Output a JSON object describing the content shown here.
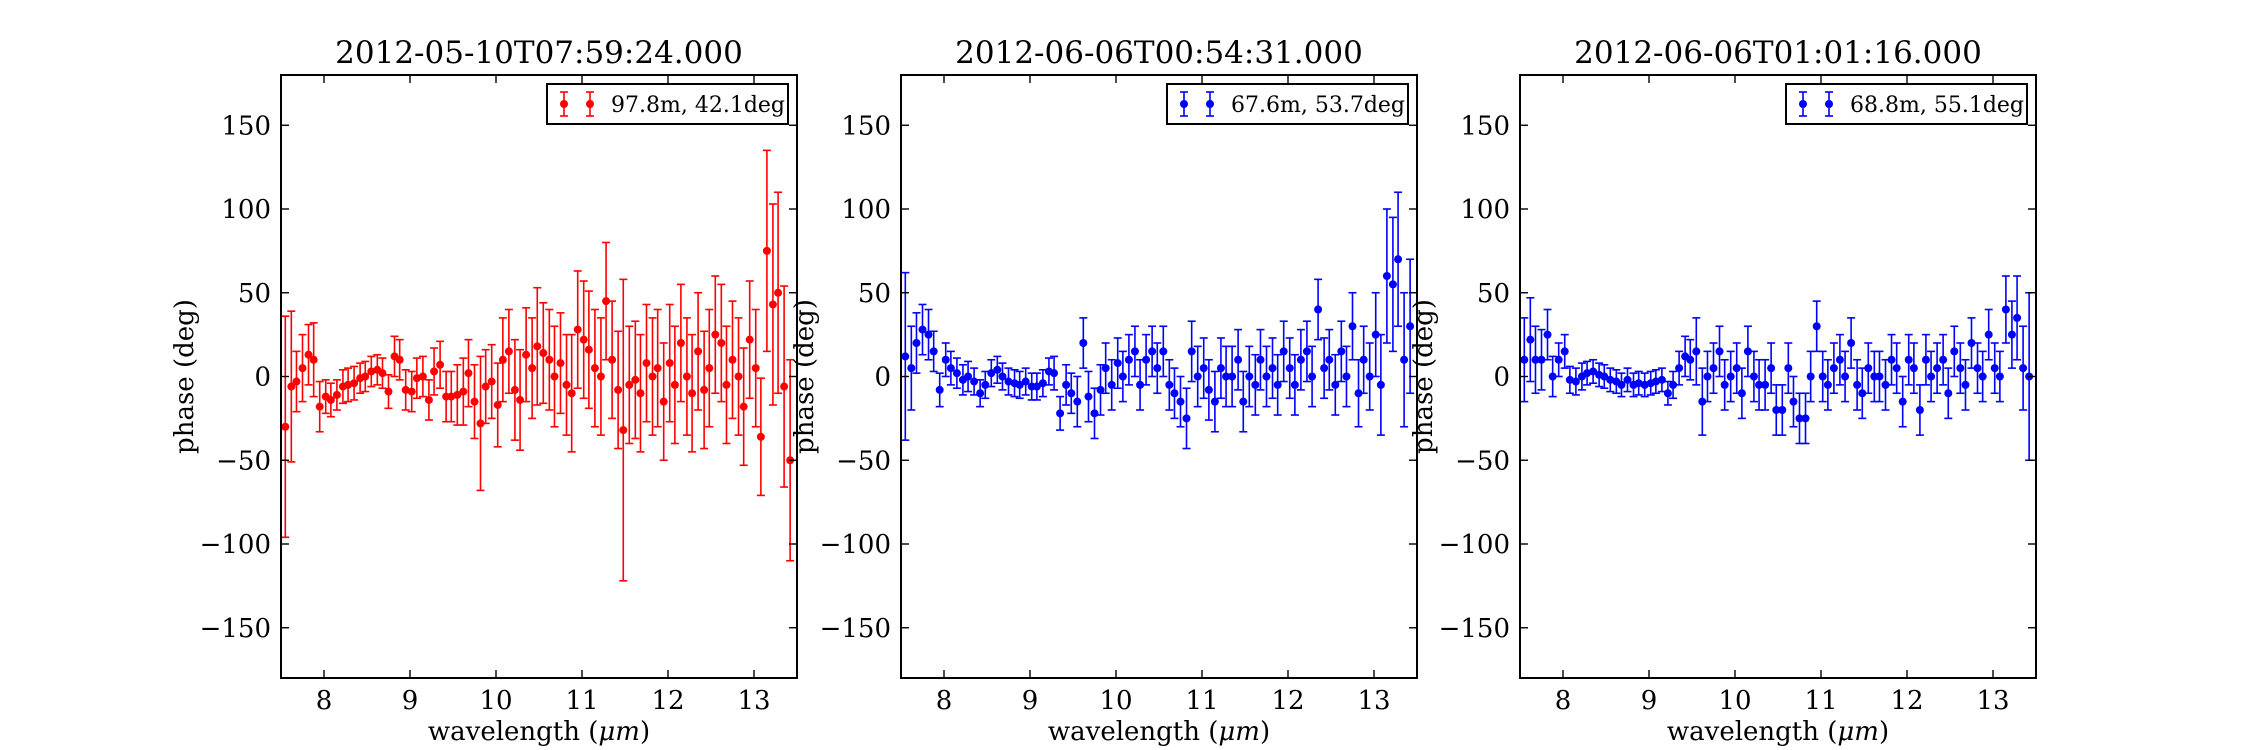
{
  "chart_data": [
    {
      "type": "scatter",
      "title": "2012-05-10T07:59:24.000",
      "xlabel": "wavelength (",
      "xlabel_unit": "μm",
      "xlabel_close": ")",
      "ylabel": "phase (deg)",
      "xlim": [
        7.5,
        13.5
      ],
      "ylim": [
        -180,
        180
      ],
      "xticks": [
        8,
        9,
        10,
        11,
        12,
        13
      ],
      "yticks": [
        -150,
        -100,
        -50,
        0,
        50,
        100,
        150
      ],
      "ytick_labels": [
        "−150",
        "−100",
        "−50",
        "0",
        "50",
        "100",
        "150"
      ],
      "xtick_labels": [
        "8",
        "9",
        "10",
        "11",
        "12",
        "13"
      ],
      "legend": {
        "label": "97.8m, 42.1deg",
        "position": "upper-right"
      },
      "color": "#ff0000",
      "series": [
        {
          "name": "97.8m, 42.1deg",
          "x": [
            7.55,
            7.62,
            7.68,
            7.75,
            7.82,
            7.88,
            7.95,
            8.02,
            8.08,
            8.15,
            8.22,
            8.28,
            8.35,
            8.42,
            8.48,
            8.55,
            8.62,
            8.68,
            8.75,
            8.82,
            8.88,
            8.95,
            9.02,
            9.08,
            9.15,
            9.22,
            9.28,
            9.35,
            9.42,
            9.48,
            9.55,
            9.62,
            9.68,
            9.75,
            9.82,
            9.88,
            9.95,
            10.02,
            10.08,
            10.15,
            10.22,
            10.28,
            10.35,
            10.42,
            10.48,
            10.55,
            10.62,
            10.68,
            10.75,
            10.82,
            10.88,
            10.95,
            11.02,
            11.08,
            11.15,
            11.22,
            11.28,
            11.35,
            11.42,
            11.48,
            11.55,
            11.62,
            11.68,
            11.75,
            11.82,
            11.88,
            11.95,
            12.02,
            12.08,
            12.15,
            12.22,
            12.28,
            12.35,
            12.42,
            12.48,
            12.55,
            12.62,
            12.68,
            12.75,
            12.82,
            12.88,
            12.95,
            13.02,
            13.08,
            13.15,
            13.22,
            13.28,
            13.35,
            13.42
          ],
          "y": [
            -30,
            -6,
            -3,
            5,
            13,
            10,
            -18,
            -12,
            -14,
            -11,
            -6,
            -5,
            -4,
            -1,
            0,
            3,
            4,
            2,
            -9,
            12,
            10,
            -8,
            -9,
            -1,
            0,
            -14,
            3,
            7,
            -12,
            -12,
            -11,
            -9,
            2,
            -15,
            -28,
            -6,
            -3,
            -17,
            10,
            15,
            -8,
            -14,
            13,
            5,
            18,
            14,
            10,
            0,
            8,
            -5,
            -10,
            28,
            22,
            16,
            5,
            0,
            45,
            10,
            -8,
            -32,
            -5,
            -2,
            -10,
            8,
            0,
            5,
            -15,
            8,
            -5,
            20,
            0,
            -10,
            15,
            -8,
            5,
            25,
            20,
            -5,
            10,
            0,
            -18,
            22,
            5,
            -36,
            75,
            43,
            50,
            -6,
            -50
          ],
          "yerr": [
            66,
            45,
            18,
            20,
            18,
            22,
            15,
            10,
            10,
            9,
            10,
            10,
            10,
            9,
            9,
            9,
            9,
            9,
            10,
            12,
            12,
            12,
            12,
            12,
            12,
            12,
            14,
            14,
            15,
            15,
            18,
            20,
            20,
            22,
            40,
            22,
            22,
            25,
            25,
            25,
            30,
            30,
            28,
            30,
            35,
            30,
            30,
            30,
            30,
            30,
            35,
            35,
            35,
            35,
            35,
            35,
            35,
            35,
            35,
            90,
            35,
            35,
            35,
            35,
            35,
            35,
            35,
            35,
            35,
            35,
            35,
            35,
            35,
            35,
            35,
            35,
            35,
            35,
            35,
            35,
            35,
            35,
            35,
            35,
            60,
            60,
            60,
            60,
            60
          ]
        }
      ]
    },
    {
      "type": "scatter",
      "title": "2012-06-06T00:54:31.000",
      "xlabel": "wavelength (",
      "xlabel_unit": "μm",
      "xlabel_close": ")",
      "ylabel": "phase (deg)",
      "xlim": [
        7.5,
        13.5
      ],
      "ylim": [
        -180,
        180
      ],
      "xticks": [
        8,
        9,
        10,
        11,
        12,
        13
      ],
      "yticks": [
        -150,
        -100,
        -50,
        0,
        50,
        100,
        150
      ],
      "ytick_labels": [
        "−150",
        "−100",
        "−50",
        "0",
        "50",
        "100",
        "150"
      ],
      "xtick_labels": [
        "8",
        "9",
        "10",
        "11",
        "12",
        "13"
      ],
      "legend": {
        "label": "67.6m, 53.7deg",
        "position": "upper-right"
      },
      "color": "#0000ff",
      "series": [
        {
          "name": "67.6m, 53.7deg",
          "x": [
            7.55,
            7.62,
            7.68,
            7.75,
            7.82,
            7.88,
            7.95,
            8.02,
            8.08,
            8.15,
            8.22,
            8.28,
            8.35,
            8.42,
            8.48,
            8.55,
            8.62,
            8.68,
            8.75,
            8.82,
            8.88,
            8.95,
            9.02,
            9.08,
            9.15,
            9.22,
            9.28,
            9.35,
            9.42,
            9.48,
            9.55,
            9.62,
            9.68,
            9.75,
            9.82,
            9.88,
            9.95,
            10.02,
            10.08,
            10.15,
            10.22,
            10.28,
            10.35,
            10.42,
            10.48,
            10.55,
            10.62,
            10.68,
            10.75,
            10.82,
            10.88,
            10.95,
            11.02,
            11.08,
            11.15,
            11.22,
            11.28,
            11.35,
            11.42,
            11.48,
            11.55,
            11.62,
            11.68,
            11.75,
            11.82,
            11.88,
            11.95,
            12.02,
            12.08,
            12.15,
            12.22,
            12.28,
            12.35,
            12.42,
            12.48,
            12.55,
            12.62,
            12.68,
            12.75,
            12.82,
            12.88,
            12.95,
            13.02,
            13.08,
            13.15,
            13.22,
            13.28,
            13.35,
            13.42
          ],
          "y": [
            12,
            5,
            20,
            28,
            25,
            15,
            -8,
            10,
            5,
            2,
            -2,
            0,
            -3,
            -10,
            -5,
            2,
            4,
            0,
            -3,
            -4,
            -5,
            -3,
            -6,
            -6,
            -4,
            3,
            2,
            -22,
            -5,
            -10,
            -15,
            20,
            -12,
            -22,
            -8,
            5,
            -5,
            8,
            0,
            10,
            15,
            -5,
            10,
            15,
            5,
            15,
            -5,
            -10,
            -15,
            -25,
            15,
            0,
            5,
            -8,
            -15,
            5,
            0,
            0,
            10,
            -15,
            0,
            -5,
            10,
            0,
            5,
            -5,
            15,
            5,
            -5,
            10,
            15,
            0,
            40,
            5,
            10,
            -5,
            15,
            0,
            30,
            -10,
            10,
            0,
            25,
            -5,
            60,
            55,
            70,
            10,
            30
          ],
          "yerr": [
            50,
            25,
            18,
            15,
            15,
            12,
            10,
            10,
            10,
            9,
            9,
            9,
            8,
            8,
            8,
            8,
            8,
            8,
            8,
            8,
            8,
            8,
            8,
            8,
            8,
            8,
            10,
            10,
            12,
            12,
            15,
            15,
            15,
            15,
            15,
            15,
            15,
            15,
            15,
            15,
            15,
            15,
            15,
            15,
            15,
            15,
            15,
            15,
            15,
            18,
            18,
            18,
            18,
            18,
            18,
            18,
            18,
            18,
            18,
            18,
            18,
            18,
            18,
            18,
            18,
            18,
            18,
            18,
            18,
            18,
            18,
            18,
            18,
            18,
            18,
            18,
            18,
            18,
            20,
            20,
            20,
            20,
            25,
            30,
            40,
            40,
            40,
            40,
            40
          ]
        }
      ]
    },
    {
      "type": "scatter",
      "title": "2012-06-06T01:01:16.000",
      "xlabel": "wavelength (",
      "xlabel_unit": "μm",
      "xlabel_close": ")",
      "ylabel": "phase (deg)",
      "xlim": [
        7.5,
        13.5
      ],
      "ylim": [
        -180,
        180
      ],
      "xticks": [
        8,
        9,
        10,
        11,
        12,
        13
      ],
      "yticks": [
        -150,
        -100,
        -50,
        0,
        50,
        100,
        150
      ],
      "ytick_labels": [
        "−150",
        "−100",
        "−50",
        "0",
        "50",
        "100",
        "150"
      ],
      "xtick_labels": [
        "8",
        "9",
        "10",
        "11",
        "12",
        "13"
      ],
      "legend": {
        "label": "68.8m, 55.1deg",
        "position": "upper-right"
      },
      "color": "#0000ff",
      "series": [
        {
          "name": "68.8m, 55.1deg",
          "x": [
            7.55,
            7.62,
            7.68,
            7.75,
            7.82,
            7.88,
            7.95,
            8.02,
            8.08,
            8.15,
            8.22,
            8.28,
            8.35,
            8.42,
            8.48,
            8.55,
            8.62,
            8.68,
            8.75,
            8.82,
            8.88,
            8.95,
            9.02,
            9.08,
            9.15,
            9.22,
            9.28,
            9.35,
            9.42,
            9.48,
            9.55,
            9.62,
            9.68,
            9.75,
            9.82,
            9.88,
            9.95,
            10.02,
            10.08,
            10.15,
            10.22,
            10.28,
            10.35,
            10.42,
            10.48,
            10.55,
            10.62,
            10.68,
            10.75,
            10.82,
            10.88,
            10.95,
            11.02,
            11.08,
            11.15,
            11.22,
            11.28,
            11.35,
            11.42,
            11.48,
            11.55,
            11.62,
            11.68,
            11.75,
            11.82,
            11.88,
            11.95,
            12.02,
            12.08,
            12.15,
            12.22,
            12.28,
            12.35,
            12.42,
            12.48,
            12.55,
            12.62,
            12.68,
            12.75,
            12.82,
            12.88,
            12.95,
            13.02,
            13.08,
            13.15,
            13.22,
            13.28,
            13.35,
            13.42
          ],
          "y": [
            10,
            22,
            10,
            10,
            25,
            0,
            10,
            15,
            -2,
            -3,
            0,
            2,
            3,
            1,
            0,
            -2,
            -3,
            -5,
            -2,
            -5,
            -4,
            -5,
            -4,
            -3,
            -2,
            -10,
            -5,
            5,
            12,
            10,
            15,
            -15,
            0,
            5,
            15,
            -5,
            0,
            5,
            -10,
            15,
            0,
            -5,
            -5,
            5,
            -20,
            -20,
            5,
            -15,
            -25,
            -25,
            0,
            30,
            0,
            -5,
            5,
            10,
            0,
            20,
            -5,
            -10,
            5,
            0,
            0,
            -5,
            10,
            5,
            -15,
            10,
            5,
            -20,
            10,
            0,
            5,
            10,
            -10,
            15,
            5,
            -5,
            20,
            5,
            0,
            25,
            5,
            0,
            40,
            25,
            35,
            5,
            0
          ],
          "yerr": [
            25,
            25,
            20,
            18,
            15,
            12,
            10,
            10,
            8,
            8,
            8,
            7,
            7,
            7,
            7,
            7,
            7,
            7,
            7,
            7,
            7,
            7,
            7,
            7,
            7,
            7,
            8,
            10,
            12,
            12,
            20,
            20,
            15,
            15,
            15,
            15,
            15,
            15,
            15,
            15,
            15,
            15,
            15,
            15,
            15,
            15,
            15,
            15,
            15,
            15,
            15,
            15,
            15,
            15,
            15,
            15,
            15,
            15,
            15,
            15,
            15,
            15,
            15,
            15,
            15,
            15,
            15,
            15,
            15,
            15,
            15,
            15,
            15,
            15,
            15,
            15,
            15,
            15,
            15,
            15,
            15,
            15,
            15,
            15,
            20,
            20,
            25,
            25,
            50
          ]
        }
      ]
    }
  ]
}
